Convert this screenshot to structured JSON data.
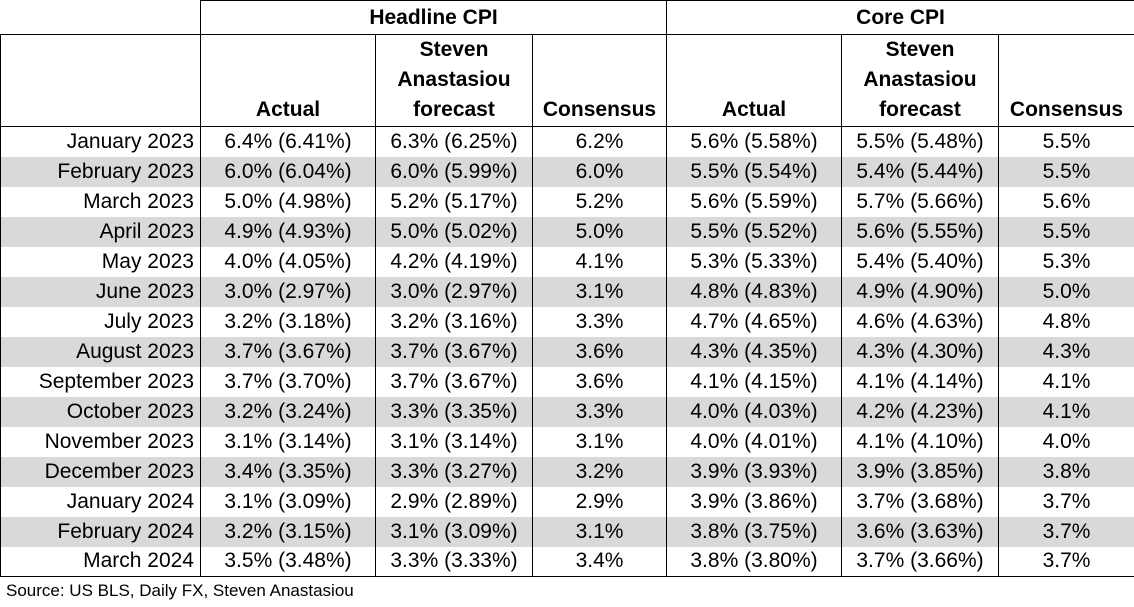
{
  "chart_data": {
    "type": "table",
    "groups": [
      "Headline CPI",
      "Core CPI"
    ],
    "columns": [
      "Actual",
      "Steven Anastasiou forecast",
      "Consensus"
    ],
    "rows": [
      {
        "month": "January 2023",
        "values": [
          "6.4% (6.41%)",
          "6.3% (6.25%)",
          "6.2%",
          "5.6% (5.58%)",
          "5.5% (5.48%)",
          "5.5%"
        ]
      },
      {
        "month": "February 2023",
        "values": [
          "6.0% (6.04%)",
          "6.0% (5.99%)",
          "6.0%",
          "5.5% (5.54%)",
          "5.4% (5.44%)",
          "5.5%"
        ]
      },
      {
        "month": "March 2023",
        "values": [
          "5.0% (4.98%)",
          "5.2% (5.17%)",
          "5.2%",
          "5.6% (5.59%)",
          "5.7% (5.66%)",
          "5.6%"
        ]
      },
      {
        "month": "April 2023",
        "values": [
          "4.9% (4.93%)",
          "5.0% (5.02%)",
          "5.0%",
          "5.5% (5.52%)",
          "5.6% (5.55%)",
          "5.5%"
        ]
      },
      {
        "month": "May 2023",
        "values": [
          "4.0% (4.05%)",
          "4.2% (4.19%)",
          "4.1%",
          "5.3% (5.33%)",
          "5.4% (5.40%)",
          "5.3%"
        ]
      },
      {
        "month": "June 2023",
        "values": [
          "3.0% (2.97%)",
          "3.0% (2.97%)",
          "3.1%",
          "4.8% (4.83%)",
          "4.9% (4.90%)",
          "5.0%"
        ]
      },
      {
        "month": "July 2023",
        "values": [
          "3.2% (3.18%)",
          "3.2% (3.16%)",
          "3.3%",
          "4.7% (4.65%)",
          "4.6% (4.63%)",
          "4.8%"
        ]
      },
      {
        "month": "August 2023",
        "values": [
          "3.7% (3.67%)",
          "3.7% (3.67%)",
          "3.6%",
          "4.3% (4.35%)",
          "4.3% (4.30%)",
          "4.3%"
        ]
      },
      {
        "month": "September 2023",
        "values": [
          "3.7% (3.70%)",
          "3.7% (3.67%)",
          "3.6%",
          "4.1% (4.15%)",
          "4.1% (4.14%)",
          "4.1%"
        ]
      },
      {
        "month": "October 2023",
        "values": [
          "3.2% (3.24%)",
          "3.3% (3.35%)",
          "3.3%",
          "4.0% (4.03%)",
          "4.2% (4.23%)",
          "4.1%"
        ]
      },
      {
        "month": "November 2023",
        "values": [
          "3.1% (3.14%)",
          "3.1% (3.14%)",
          "3.1%",
          "4.0% (4.01%)",
          "4.1% (4.10%)",
          "4.0%"
        ]
      },
      {
        "month": "December 2023",
        "values": [
          "3.4% (3.35%)",
          "3.3% (3.27%)",
          "3.2%",
          "3.9% (3.93%)",
          "3.9% (3.85%)",
          "3.8%"
        ]
      },
      {
        "month": "January 2024",
        "values": [
          "3.1% (3.09%)",
          "2.9% (2.89%)",
          "2.9%",
          "3.9% (3.86%)",
          "3.7% (3.68%)",
          "3.7%"
        ]
      },
      {
        "month": "February 2024",
        "values": [
          "3.2% (3.15%)",
          "3.1% (3.09%)",
          "3.1%",
          "3.8% (3.75%)",
          "3.6% (3.63%)",
          "3.7%"
        ]
      },
      {
        "month": "March 2024",
        "values": [
          "3.5% (3.48%)",
          "3.3% (3.33%)",
          "3.4%",
          "3.8% (3.80%)",
          "3.7% (3.66%)",
          "3.7%"
        ]
      }
    ],
    "row_shading": "alternate",
    "shade_color": "#d9d9d9",
    "source": "Source: US BLS, Daily FX, Steven Anastasiou"
  }
}
